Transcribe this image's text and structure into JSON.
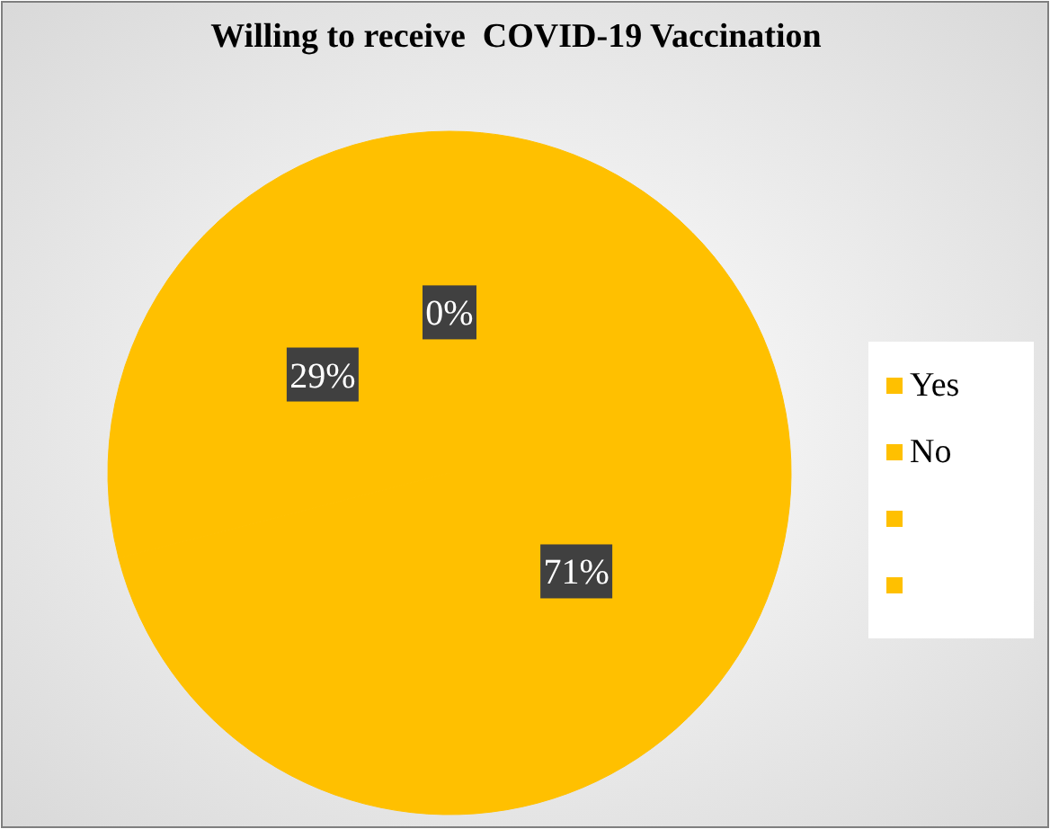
{
  "chart_data": {
    "type": "pie",
    "title": "Willing to receive  COVID-19 Vaccination",
    "categories": [
      "Yes",
      "No",
      null,
      null
    ],
    "values": [
      71,
      29,
      0,
      0
    ],
    "colors": [
      "#ffc000",
      "#ffc000",
      "#ffc000",
      "#ffc000"
    ],
    "value_labels": [
      "71%",
      "29%",
      "0%",
      null
    ],
    "legend": "right"
  }
}
